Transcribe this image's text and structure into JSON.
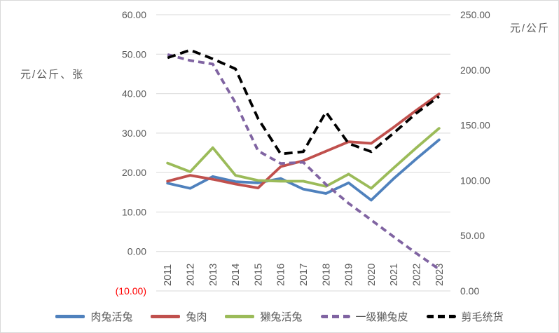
{
  "chart_data": {
    "type": "line",
    "title": "",
    "xlabel": "",
    "x_categories": [
      "2011",
      "2012",
      "2013",
      "2014",
      "2015",
      "2016",
      "2017",
      "2018",
      "2019",
      "2020",
      "2021",
      "2022",
      "2023"
    ],
    "left_axis": {
      "title": "元/公斤、张",
      "min": -10,
      "max": 60,
      "ticks": [
        {
          "label": "60.00",
          "value": 60
        },
        {
          "label": "50.00",
          "value": 50
        },
        {
          "label": "40.00",
          "value": 40
        },
        {
          "label": "30.00",
          "value": 30
        },
        {
          "label": "20.00",
          "value": 20
        },
        {
          "label": "10.00",
          "value": 10
        },
        {
          "label": "0.00",
          "value": 0
        },
        {
          "label": "(10.00)",
          "value": -10,
          "color": "#FF0000"
        }
      ]
    },
    "right_axis": {
      "title": "元/公斤",
      "min": 0,
      "max": 250,
      "ticks": [
        {
          "label": "250.00",
          "value": 250
        },
        {
          "label": "200.00",
          "value": 200
        },
        {
          "label": "150.00",
          "value": 150
        },
        {
          "label": "100.00",
          "value": 100
        },
        {
          "label": "50.00",
          "value": 50
        },
        {
          "label": "0.00",
          "value": 0
        }
      ]
    },
    "grid": true,
    "grid_color": "#D9D9D9",
    "tick_color": "#595959",
    "legend_position": "bottom",
    "series": [
      {
        "name": "肉兔活兔",
        "color": "#4F81BD",
        "style": "solid",
        "axis": "left",
        "values": [
          17.3,
          16.0,
          19.0,
          17.7,
          17.4,
          18.5,
          15.8,
          14.7,
          17.4,
          13.0,
          18.5,
          23.5,
          28.3
        ]
      },
      {
        "name": "兔肉",
        "color": "#C0504D",
        "style": "solid",
        "axis": "left",
        "values": [
          17.8,
          19.3,
          18.3,
          17.1,
          16.1,
          21.5,
          23.0,
          25.4,
          27.8,
          27.4,
          31.5,
          35.8,
          39.9
        ]
      },
      {
        "name": "獭兔活兔",
        "color": "#9BBB59",
        "style": "solid",
        "axis": "left",
        "values": [
          22.4,
          20.2,
          26.3,
          19.3,
          18.0,
          17.8,
          17.8,
          16.5,
          19.6,
          16.0,
          21.2,
          26.3,
          31.2
        ]
      },
      {
        "name": "一级獭兔皮",
        "color": "#8064A2",
        "style": "dashed",
        "axis": "left",
        "values": [
          49.9,
          48.4,
          47.5,
          37.7,
          25.5,
          22.3,
          22.6,
          17.0,
          12.2,
          8.0,
          3.7,
          -0.5,
          -4.5
        ]
      },
      {
        "name": "剪毛统货",
        "color": "#000000",
        "style": "dashed",
        "axis": "right",
        "values": [
          211,
          218,
          210,
          201,
          156,
          124,
          126,
          162,
          133.5,
          126,
          143,
          161,
          176
        ]
      }
    ]
  }
}
